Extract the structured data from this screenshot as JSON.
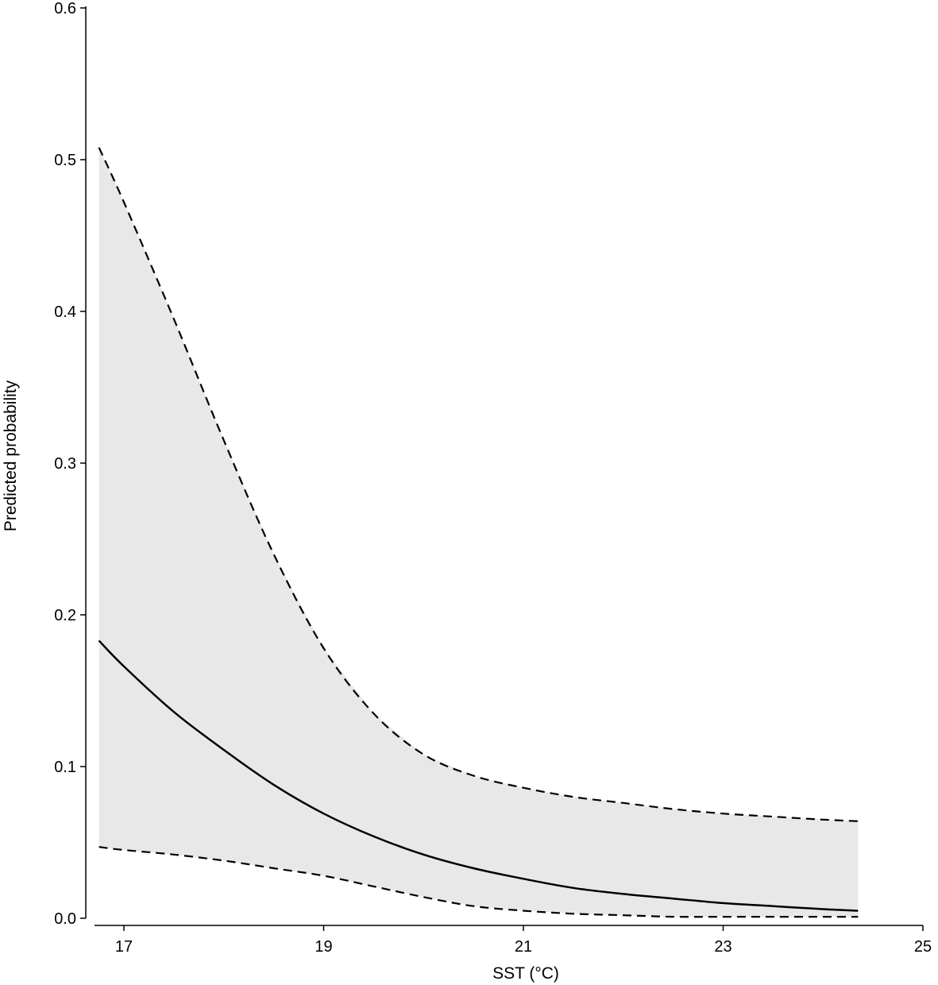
{
  "chart_data": {
    "type": "line",
    "title": "",
    "xlabel": "SST (°C)",
    "ylabel": "Predicted probability",
    "xlim": [
      16.7,
      25
    ],
    "ylim": [
      0,
      0.6
    ],
    "xticks": [
      "17",
      "19",
      "21",
      "23",
      "25"
    ],
    "yticks": [
      "0.0",
      "0.1",
      "0.2",
      "0.3",
      "0.4",
      "0.5",
      "0.6"
    ],
    "grid": false,
    "legend": "none",
    "band_color": "#e8e8e8",
    "line_color": "#000000",
    "series": [
      {
        "role": "fit",
        "style": "solid",
        "x": [
          16.75,
          17.0,
          17.5,
          18.0,
          18.5,
          19.0,
          19.5,
          20.0,
          20.5,
          21.0,
          21.5,
          22.0,
          22.5,
          23.0,
          23.5,
          24.0,
          24.35
        ],
        "y": [
          0.183,
          0.166,
          0.136,
          0.111,
          0.088,
          0.069,
          0.054,
          0.042,
          0.033,
          0.026,
          0.02,
          0.016,
          0.013,
          0.01,
          0.008,
          0.006,
          0.005
        ]
      },
      {
        "role": "upper",
        "style": "dashed",
        "x": [
          16.75,
          17.0,
          17.5,
          18.0,
          18.5,
          19.0,
          19.5,
          20.0,
          20.5,
          21.0,
          21.5,
          22.0,
          22.5,
          23.0,
          23.5,
          24.0,
          24.35
        ],
        "y": [
          0.508,
          0.472,
          0.395,
          0.315,
          0.24,
          0.178,
          0.135,
          0.108,
          0.094,
          0.086,
          0.08,
          0.076,
          0.072,
          0.069,
          0.067,
          0.065,
          0.064
        ]
      },
      {
        "role": "lower",
        "style": "dashed",
        "x": [
          16.75,
          17.0,
          17.5,
          18.0,
          18.5,
          19.0,
          19.5,
          20.0,
          20.5,
          21.0,
          21.5,
          22.0,
          22.5,
          23.0,
          23.5,
          24.0,
          24.35
        ],
        "y": [
          0.047,
          0.045,
          0.042,
          0.038,
          0.033,
          0.028,
          0.021,
          0.014,
          0.008,
          0.005,
          0.003,
          0.002,
          0.001,
          0.001,
          0.001,
          0.001,
          0.001
        ]
      }
    ]
  }
}
